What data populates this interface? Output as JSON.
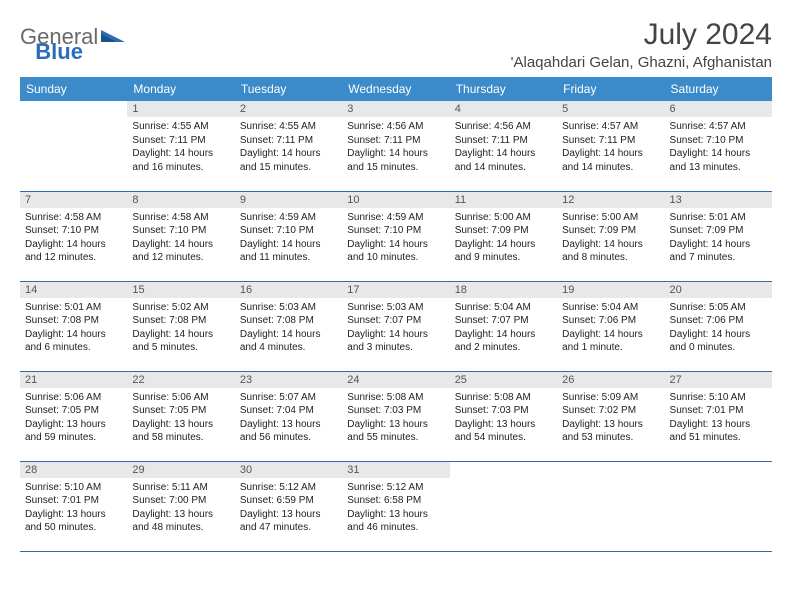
{
  "brand": {
    "part1": "General",
    "part2": "Blue"
  },
  "title": "July 2024",
  "location": "'Alaqahdari Gelan, Ghazni, Afghanistan",
  "colors": {
    "header_bg": "#3b8bcb",
    "header_text": "#ffffff",
    "rule": "#2a6db8",
    "daynum_bg": "#e8e8e8",
    "text": "#222222",
    "title_text": "#444444"
  },
  "dayNames": [
    "Sunday",
    "Monday",
    "Tuesday",
    "Wednesday",
    "Thursday",
    "Friday",
    "Saturday"
  ],
  "weeks": [
    [
      {
        "n": "",
        "sr": "",
        "ss": "",
        "dl": ""
      },
      {
        "n": "1",
        "sr": "4:55 AM",
        "ss": "7:11 PM",
        "dl": "14 hours and 16 minutes."
      },
      {
        "n": "2",
        "sr": "4:55 AM",
        "ss": "7:11 PM",
        "dl": "14 hours and 15 minutes."
      },
      {
        "n": "3",
        "sr": "4:56 AM",
        "ss": "7:11 PM",
        "dl": "14 hours and 15 minutes."
      },
      {
        "n": "4",
        "sr": "4:56 AM",
        "ss": "7:11 PM",
        "dl": "14 hours and 14 minutes."
      },
      {
        "n": "5",
        "sr": "4:57 AM",
        "ss": "7:11 PM",
        "dl": "14 hours and 14 minutes."
      },
      {
        "n": "6",
        "sr": "4:57 AM",
        "ss": "7:10 PM",
        "dl": "14 hours and 13 minutes."
      }
    ],
    [
      {
        "n": "7",
        "sr": "4:58 AM",
        "ss": "7:10 PM",
        "dl": "14 hours and 12 minutes."
      },
      {
        "n": "8",
        "sr": "4:58 AM",
        "ss": "7:10 PM",
        "dl": "14 hours and 12 minutes."
      },
      {
        "n": "9",
        "sr": "4:59 AM",
        "ss": "7:10 PM",
        "dl": "14 hours and 11 minutes."
      },
      {
        "n": "10",
        "sr": "4:59 AM",
        "ss": "7:10 PM",
        "dl": "14 hours and 10 minutes."
      },
      {
        "n": "11",
        "sr": "5:00 AM",
        "ss": "7:09 PM",
        "dl": "14 hours and 9 minutes."
      },
      {
        "n": "12",
        "sr": "5:00 AM",
        "ss": "7:09 PM",
        "dl": "14 hours and 8 minutes."
      },
      {
        "n": "13",
        "sr": "5:01 AM",
        "ss": "7:09 PM",
        "dl": "14 hours and 7 minutes."
      }
    ],
    [
      {
        "n": "14",
        "sr": "5:01 AM",
        "ss": "7:08 PM",
        "dl": "14 hours and 6 minutes."
      },
      {
        "n": "15",
        "sr": "5:02 AM",
        "ss": "7:08 PM",
        "dl": "14 hours and 5 minutes."
      },
      {
        "n": "16",
        "sr": "5:03 AM",
        "ss": "7:08 PM",
        "dl": "14 hours and 4 minutes."
      },
      {
        "n": "17",
        "sr": "5:03 AM",
        "ss": "7:07 PM",
        "dl": "14 hours and 3 minutes."
      },
      {
        "n": "18",
        "sr": "5:04 AM",
        "ss": "7:07 PM",
        "dl": "14 hours and 2 minutes."
      },
      {
        "n": "19",
        "sr": "5:04 AM",
        "ss": "7:06 PM",
        "dl": "14 hours and 1 minute."
      },
      {
        "n": "20",
        "sr": "5:05 AM",
        "ss": "7:06 PM",
        "dl": "14 hours and 0 minutes."
      }
    ],
    [
      {
        "n": "21",
        "sr": "5:06 AM",
        "ss": "7:05 PM",
        "dl": "13 hours and 59 minutes."
      },
      {
        "n": "22",
        "sr": "5:06 AM",
        "ss": "7:05 PM",
        "dl": "13 hours and 58 minutes."
      },
      {
        "n": "23",
        "sr": "5:07 AM",
        "ss": "7:04 PM",
        "dl": "13 hours and 56 minutes."
      },
      {
        "n": "24",
        "sr": "5:08 AM",
        "ss": "7:03 PM",
        "dl": "13 hours and 55 minutes."
      },
      {
        "n": "25",
        "sr": "5:08 AM",
        "ss": "7:03 PM",
        "dl": "13 hours and 54 minutes."
      },
      {
        "n": "26",
        "sr": "5:09 AM",
        "ss": "7:02 PM",
        "dl": "13 hours and 53 minutes."
      },
      {
        "n": "27",
        "sr": "5:10 AM",
        "ss": "7:01 PM",
        "dl": "13 hours and 51 minutes."
      }
    ],
    [
      {
        "n": "28",
        "sr": "5:10 AM",
        "ss": "7:01 PM",
        "dl": "13 hours and 50 minutes."
      },
      {
        "n": "29",
        "sr": "5:11 AM",
        "ss": "7:00 PM",
        "dl": "13 hours and 48 minutes."
      },
      {
        "n": "30",
        "sr": "5:12 AM",
        "ss": "6:59 PM",
        "dl": "13 hours and 47 minutes."
      },
      {
        "n": "31",
        "sr": "5:12 AM",
        "ss": "6:58 PM",
        "dl": "13 hours and 46 minutes."
      },
      {
        "n": "",
        "sr": "",
        "ss": "",
        "dl": ""
      },
      {
        "n": "",
        "sr": "",
        "ss": "",
        "dl": ""
      },
      {
        "n": "",
        "sr": "",
        "ss": "",
        "dl": ""
      }
    ]
  ],
  "labels": {
    "sunrise": "Sunrise:",
    "sunset": "Sunset:",
    "daylight": "Daylight:"
  }
}
